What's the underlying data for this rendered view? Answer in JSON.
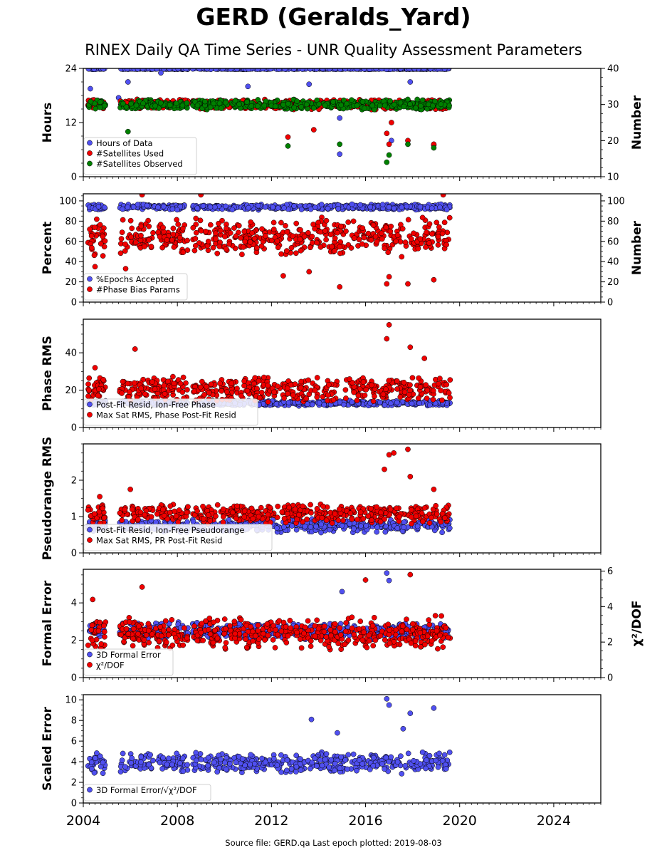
{
  "figure": {
    "title": "GERD (Geralds_Yard)",
    "subtitle": "RINEX Daily QA Time Series - UNR Quality Assessment Parameters",
    "footer": "Source file: GERD.qa Last epoch plotted: 2019-08-03"
  },
  "colors": {
    "blue": "#5050f0",
    "red": "#f00000",
    "green": "#008000",
    "marker_edge": "#000000"
  },
  "chart_data": [
    {
      "type": "scatter",
      "ylabel": "Hours",
      "ylabel_right": "Number",
      "xlim": [
        2004,
        2026
      ],
      "ylim": [
        0,
        24
      ],
      "yticks": [
        0,
        12,
        24
      ],
      "ylim_right": [
        10,
        40
      ],
      "yticks_right": [
        10,
        20,
        30,
        40
      ],
      "legend_position": "lower-left",
      "x_data_range": [
        2004.2,
        2019.6
      ],
      "series": [
        {
          "name": "Hours of Data",
          "color": "blue",
          "axis": "left",
          "typical": [
            23.8,
            24.0
          ],
          "outliers": [
            [
              2004.3,
              19.5
            ],
            [
              2005.5,
              17.5
            ],
            [
              2005.9,
              21.0
            ],
            [
              2007.3,
              23.0
            ],
            [
              2011.0,
              20.0
            ],
            [
              2013.6,
              20.5
            ],
            [
              2014.9,
              13.0
            ],
            [
              2014.9,
              5.0
            ],
            [
              2017.0,
              15.5
            ],
            [
              2017.1,
              8.0
            ],
            [
              2017.9,
              21.0
            ],
            [
              2018.9,
              7.0
            ]
          ]
        },
        {
          "name": "#Satellites Used",
          "color": "red",
          "axis": "right",
          "typical": [
            28.5,
            31.5
          ],
          "outliers": [
            [
              2012.7,
              21.0
            ],
            [
              2013.8,
              23.0
            ],
            [
              2016.9,
              22.0
            ],
            [
              2017.0,
              19.0
            ],
            [
              2017.1,
              25.0
            ],
            [
              2017.8,
              20.0
            ],
            [
              2018.9,
              19.0
            ]
          ]
        },
        {
          "name": "#Satellites Observed",
          "color": "green",
          "axis": "right",
          "typical": [
            28.5,
            31.5
          ],
          "outliers": [
            [
              2005.9,
              22.5
            ],
            [
              2012.7,
              18.5
            ],
            [
              2014.9,
              19.0
            ],
            [
              2016.9,
              14.0
            ],
            [
              2017.0,
              16.0
            ],
            [
              2017.8,
              19.0
            ],
            [
              2018.9,
              18.0
            ]
          ]
        }
      ]
    },
    {
      "type": "scatter",
      "ylabel": "Percent",
      "ylabel_right": "Number",
      "xlim": [
        2004,
        2026
      ],
      "ylim": [
        0,
        107
      ],
      "yticks": [
        0,
        20,
        40,
        60,
        80,
        100
      ],
      "ylim_right": [
        0,
        107
      ],
      "yticks_right": [
        0,
        20,
        40,
        60,
        80,
        100
      ],
      "legend_position": "lower-left",
      "x_data_range": [
        2004.2,
        2019.6
      ],
      "series": [
        {
          "name": "%Epochs Accepted",
          "color": "blue",
          "axis": "left",
          "typical": [
            91,
            97
          ],
          "outliers": []
        },
        {
          "name": "#Phase Bias Params",
          "color": "red",
          "axis": "right",
          "typical": [
            44,
            85
          ],
          "outliers": [
            [
              2004.5,
              35.0
            ],
            [
              2005.8,
              33.0
            ],
            [
              2006.5,
              106.0
            ],
            [
              2009.0,
              106.0
            ],
            [
              2012.5,
              26.0
            ],
            [
              2013.6,
              30.0
            ],
            [
              2014.9,
              15.0
            ],
            [
              2016.9,
              18.0
            ],
            [
              2017.0,
              25.0
            ],
            [
              2017.8,
              18.0
            ],
            [
              2018.9,
              22.0
            ],
            [
              2019.3,
              106.0
            ]
          ]
        }
      ]
    },
    {
      "type": "scatter",
      "ylabel": "Phase RMS",
      "xlim": [
        2004,
        2026
      ],
      "ylim": [
        0,
        58
      ],
      "yticks": [
        0,
        20,
        40
      ],
      "legend_position": "lower-left",
      "x_data_range": [
        2004.2,
        2019.6
      ],
      "series": [
        {
          "name": "Post-Fit Resid, Ion-Free Phase",
          "color": "blue",
          "typical": [
            11.5,
            14.5
          ],
          "outliers": []
        },
        {
          "name": "Max Sat RMS, Phase Post-Fit Resid",
          "color": "red",
          "typical": [
            13,
            28
          ],
          "outliers": [
            [
              2004.5,
              32.0
            ],
            [
              2006.2,
              42.0
            ],
            [
              2016.9,
              47.5
            ],
            [
              2017.0,
              55.0
            ],
            [
              2017.9,
              43.0
            ],
            [
              2018.5,
              37.0
            ]
          ]
        }
      ]
    },
    {
      "type": "scatter",
      "ylabel": "Pseudorange RMS",
      "xlim": [
        2004,
        2026
      ],
      "ylim": [
        0,
        3.0
      ],
      "yticks": [
        0,
        1,
        2
      ],
      "legend_position": "lower-left",
      "x_data_range": [
        2004.2,
        2019.6
      ],
      "series": [
        {
          "name": "Post-Fit Resid, Ion-Free Pseudorange",
          "color": "blue",
          "typical": [
            0.55,
            0.95
          ],
          "outliers": []
        },
        {
          "name": "Max Sat RMS, PR Post-Fit Resid",
          "color": "red",
          "typical": [
            0.8,
            1.35
          ],
          "outliers": [
            [
              2004.7,
              1.55
            ],
            [
              2006.0,
              1.75
            ],
            [
              2016.8,
              2.3
            ],
            [
              2017.0,
              2.7
            ],
            [
              2017.2,
              2.75
            ],
            [
              2017.8,
              2.85
            ],
            [
              2017.9,
              2.1
            ],
            [
              2018.9,
              1.75
            ]
          ]
        }
      ]
    },
    {
      "type": "scatter",
      "ylabel": "Formal Error",
      "ylabel_right": "χ²/DOF",
      "xlim": [
        2004,
        2026
      ],
      "ylim": [
        0,
        5.8
      ],
      "yticks": [
        0,
        2,
        4
      ],
      "ylim_right": [
        0,
        6.1
      ],
      "yticks_right": [
        0,
        2,
        4,
        6
      ],
      "legend_position": "lower-left",
      "x_data_range": [
        2004.2,
        2019.6
      ],
      "series": [
        {
          "name": "3D Formal Error",
          "color": "blue",
          "axis": "left",
          "typical": [
            2.0,
            3.0
          ],
          "outliers": [
            [
              2016.9,
              5.6
            ],
            [
              2017.0,
              5.2
            ],
            [
              2015.0,
              4.6
            ]
          ]
        },
        {
          "name": "χ²/DOF",
          "color": "red",
          "axis": "right",
          "typical": [
            1.5,
            3.5
          ],
          "outliers": [
            [
              2006.5,
              5.1
            ],
            [
              2016.0,
              5.5
            ],
            [
              2017.9,
              5.8
            ],
            [
              2004.4,
              4.4
            ]
          ]
        }
      ]
    },
    {
      "type": "scatter",
      "ylabel": "Scaled Error",
      "xlim": [
        2004,
        2026
      ],
      "ylim": [
        0,
        10.5
      ],
      "yticks": [
        0,
        2,
        4,
        6,
        8,
        10
      ],
      "xticks": [
        2004,
        2008,
        2012,
        2016,
        2020,
        2024
      ],
      "legend_position": "lower-left",
      "x_data_range": [
        2004.2,
        2019.6
      ],
      "series": [
        {
          "name": "3D Formal Error/√χ²/DOF",
          "color": "blue",
          "typical": [
            2.8,
            5.0
          ],
          "outliers": [
            [
              2013.7,
              8.1
            ],
            [
              2016.9,
              10.1
            ],
            [
              2017.0,
              9.5
            ],
            [
              2017.9,
              8.7
            ],
            [
              2018.9,
              9.2
            ],
            [
              2017.6,
              7.2
            ],
            [
              2014.8,
              6.8
            ]
          ]
        }
      ]
    }
  ]
}
